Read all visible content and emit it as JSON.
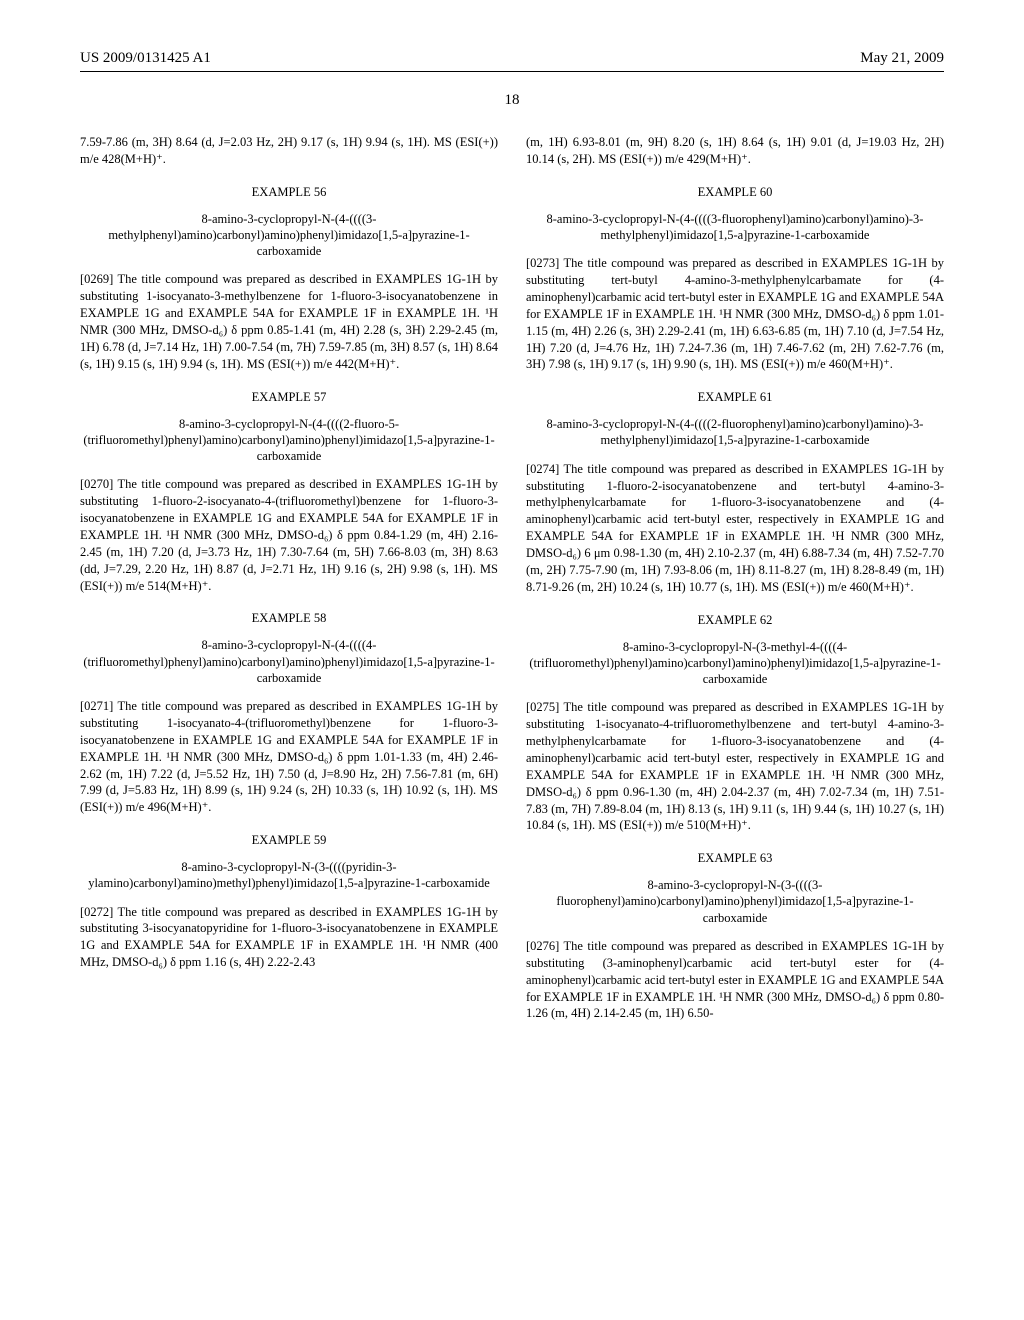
{
  "header": {
    "left": "US 2009/0131425 A1",
    "right": "May 21, 2009",
    "page_num": "18"
  },
  "left_col": {
    "orphan": "7.59-7.86 (m, 3H) 8.64 (d, J=2.03 Hz, 2H) 9.17 (s, 1H) 9.94 (s, 1H). MS (ESI(+)) m/e 428(M+H)⁺.",
    "ex56": {
      "label": "EXAMPLE 56",
      "title": "8-amino-3-cyclopropyl-N-(4-((((3-methylphenyl)amino)carbonyl)amino)phenyl)imidazo[1,5-a]pyrazine-1-carboxamide",
      "body": "[0269] The title compound was prepared as described in EXAMPLES 1G-1H by substituting 1-isocyanato-3-methylbenzene for 1-fluoro-3-isocyanatobenzene in EXAMPLE 1G and EXAMPLE 54A for EXAMPLE 1F in EXAMPLE 1H. ¹H NMR (300 MHz, DMSO-d₆) δ ppm 0.85-1.41 (m, 4H) 2.28 (s, 3H) 2.29-2.45 (m, 1H) 6.78 (d, J=7.14 Hz, 1H) 7.00-7.54 (m, 7H) 7.59-7.85 (m, 3H) 8.57 (s, 1H) 8.64 (s, 1H) 9.15 (s, 1H) 9.94 (s, 1H). MS (ESI(+)) m/e 442(M+H)⁺."
    },
    "ex57": {
      "label": "EXAMPLE 57",
      "title": "8-amino-3-cyclopropyl-N-(4-((((2-fluoro-5-(trifluoromethyl)phenyl)amino)carbonyl)amino)phenyl)imidazo[1,5-a]pyrazine-1-carboxamide",
      "body": "[0270] The title compound was prepared as described in EXAMPLES 1G-1H by substituting 1-fluoro-2-isocyanato-4-(trifluoromethyl)benzene for 1-fluoro-3-isocyanatobenzene in EXAMPLE 1G and EXAMPLE 54A for EXAMPLE 1F in EXAMPLE 1H. ¹H NMR (300 MHz, DMSO-d₆) δ ppm 0.84-1.29 (m, 4H) 2.16-2.45 (m, 1H) 7.20 (d, J=3.73 Hz, 1H) 7.30-7.64 (m, 5H) 7.66-8.03 (m, 3H) 8.63 (dd, J=7.29, 2.20 Hz, 1H) 8.87 (d, J=2.71 Hz, 1H) 9.16 (s, 2H) 9.98 (s, 1H). MS (ESI(+)) m/e 514(M+H)⁺."
    },
    "ex58": {
      "label": "EXAMPLE 58",
      "title": "8-amino-3-cyclopropyl-N-(4-((((4-(trifluoromethyl)phenyl)amino)carbonyl)amino)phenyl)imidazo[1,5-a]pyrazine-1-carboxamide",
      "body": "[0271] The title compound was prepared as described in EXAMPLES 1G-1H by substituting 1-isocyanato-4-(trifluoromethyl)benzene for 1-fluoro-3-isocyanatobenzene in EXAMPLE 1G and EXAMPLE 54A for EXAMPLE 1F in EXAMPLE 1H. ¹H NMR (300 MHz, DMSO-d₆) δ ppm 1.01-1.33 (m, 4H) 2.46-2.62 (m, 1H) 7.22 (d, J=5.52 Hz, 1H) 7.50 (d, J=8.90 Hz, 2H) 7.56-7.81 (m, 6H) 7.99 (d, J=5.83 Hz, 1H) 8.99 (s, 1H) 9.24 (s, 2H) 10.33 (s, 1H) 10.92 (s, 1H). MS (ESI(+)) m/e 496(M+H)⁺."
    },
    "ex59": {
      "label": "EXAMPLE 59",
      "title": "8-amino-3-cyclopropyl-N-(3-((((pyridin-3-ylamino)carbonyl)amino)methyl)phenyl)imidazo[1,5-a]pyrazine-1-carboxamide",
      "body": "[0272] The title compound was prepared as described in EXAMPLES 1G-1H by substituting 3-isocyanatopyridine for 1-fluoro-3-isocyanatobenzene in EXAMPLE 1G and EXAMPLE 54A for EXAMPLE 1F in EXAMPLE 1H. ¹H NMR (400 MHz, DMSO-d₆) δ ppm 1.16 (s, 4H) 2.22-2.43"
    }
  },
  "right_col": {
    "orphan": "(m, 1H) 6.93-8.01 (m, 9H) 8.20 (s, 1H) 8.64 (s, 1H) 9.01 (d, J=19.03 Hz, 2H) 10.14 (s, 2H). MS (ESI(+)) m/e 429(M+H)⁺.",
    "ex60": {
      "label": "EXAMPLE 60",
      "title": "8-amino-3-cyclopropyl-N-(4-((((3-fluorophenyl)amino)carbonyl)amino)-3-methylphenyl)imidazo[1,5-a]pyrazine-1-carboxamide",
      "body": "[0273] The title compound was prepared as described in EXAMPLES 1G-1H by substituting tert-butyl 4-amino-3-methylphenylcarbamate for (4-aminophenyl)carbamic acid tert-butyl ester in EXAMPLE 1G and EXAMPLE 54A for EXAMPLE 1F in EXAMPLE 1H. ¹H NMR (300 MHz, DMSO-d₆) δ ppm 1.01-1.15 (m, 4H) 2.26 (s, 3H) 2.29-2.41 (m, 1H) 6.63-6.85 (m, 1H) 7.10 (d, J=7.54 Hz, 1H) 7.20 (d, J=4.76 Hz, 1H) 7.24-7.36 (m, 1H) 7.46-7.62 (m, 2H) 7.62-7.76 (m, 3H) 7.98 (s, 1H) 9.17 (s, 1H) 9.90 (s, 1H). MS (ESI(+)) m/e 460(M+H)⁺."
    },
    "ex61": {
      "label": "EXAMPLE 61",
      "title": "8-amino-3-cyclopropyl-N-(4-((((2-fluorophenyl)amino)carbonyl)amino)-3-methylphenyl)imidazo[1,5-a]pyrazine-1-carboxamide",
      "body": "[0274] The title compound was prepared as described in EXAMPLES 1G-1H by substituting 1-fluoro-2-isocyanatobenzene and tert-butyl 4-amino-3-methylphenylcarbamate for 1-fluoro-3-isocyanatobenzene and (4-aminophenyl)carbamic acid tert-butyl ester, respectively in EXAMPLE 1G and EXAMPLE 54A for EXAMPLE 1F in EXAMPLE 1H. ¹H NMR (300 MHz, DMSO-d₆) 6 μm 0.98-1.30 (m, 4H) 2.10-2.37 (m, 4H) 6.88-7.34 (m, 4H) 7.52-7.70 (m, 2H) 7.75-7.90 (m, 1H) 7.93-8.06 (m, 1H) 8.11-8.27 (m, 1H) 8.28-8.49 (m, 1H) 8.71-9.26 (m, 2H) 10.24 (s, 1H) 10.77 (s, 1H). MS (ESI(+)) m/e 460(M+H)⁺."
    },
    "ex62": {
      "label": "EXAMPLE 62",
      "title": "8-amino-3-cyclopropyl-N-(3-methyl-4-((((4-(trifluoromethyl)phenyl)amino)carbonyl)amino)phenyl)imidazo[1,5-a]pyrazine-1-carboxamide",
      "body": "[0275] The title compound was prepared as described in EXAMPLES 1G-1H by substituting 1-isocyanato-4-trifluoromethylbenzene and tert-butyl 4-amino-3-methylphenylcarbamate for 1-fluoro-3-isocyanatobenzene and (4-aminophenyl)carbamic acid tert-butyl ester, respectively in EXAMPLE 1G and EXAMPLE 54A for EXAMPLE 1F in EXAMPLE 1H. ¹H NMR (300 MHz, DMSO-d₆) δ ppm 0.96-1.30 (m, 4H) 2.04-2.37 (m, 4H) 7.02-7.34 (m, 1H) 7.51-7.83 (m, 7H) 7.89-8.04 (m, 1H) 8.13 (s, 1H) 9.11 (s, 1H) 9.44 (s, 1H) 10.27 (s, 1H) 10.84 (s, 1H). MS (ESI(+)) m/e 510(M+H)⁺."
    },
    "ex63": {
      "label": "EXAMPLE 63",
      "title": "8-amino-3-cyclopropyl-N-(3-((((3-fluorophenyl)amino)carbonyl)amino)phenyl)imidazo[1,5-a]pyrazine-1-carboxamide",
      "body": "[0276] The title compound was prepared as described in EXAMPLES 1G-1H by substituting (3-aminophenyl)carbamic acid tert-butyl ester for (4-aminophenyl)carbamic acid tert-butyl ester in EXAMPLE 1G and EXAMPLE 54A for EXAMPLE 1F in EXAMPLE 1H. ¹H NMR (300 MHz, DMSO-d₆) δ ppm 0.80-1.26 (m, 4H) 2.14-2.45 (m, 1H) 6.50-"
    }
  }
}
